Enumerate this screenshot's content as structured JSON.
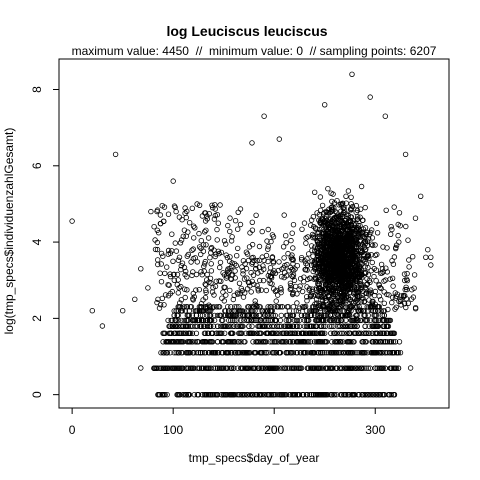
{
  "chart_data": {
    "type": "scatter",
    "title": "log Leuciscus leuciscus",
    "subtitle": "maximum value: 4450  //  minimum value: 0  // sampling points: 6207",
    "xlabel": "tmp_specs$day_of_year",
    "ylabel": "log(tmp_specs$individuenzahlGesamt)",
    "xlim": [
      -13,
      373
    ],
    "ylim": [
      -0.35,
      8.8
    ],
    "xticks": [
      0,
      100,
      200,
      300
    ],
    "yticks": [
      0,
      2,
      4,
      6,
      8
    ],
    "grid": false,
    "marker": "open-circle",
    "point_color": "#000000",
    "max_value": 4450,
    "min_value": 0,
    "sampling_points": 6207,
    "main_cluster": {
      "x_range": [
        230,
        305
      ],
      "y_range": [
        1.9,
        6.5
      ],
      "center": [
        265,
        3.6
      ]
    },
    "outliers": [
      {
        "x": 0,
        "y": 4.55
      },
      {
        "x": 20,
        "y": 2.2
      },
      {
        "x": 30,
        "y": 1.8
      },
      {
        "x": 43,
        "y": 6.3
      },
      {
        "x": 50,
        "y": 2.2
      },
      {
        "x": 62,
        "y": 2.5
      },
      {
        "x": 68,
        "y": 0.7
      },
      {
        "x": 68,
        "y": 3.3
      },
      {
        "x": 75,
        "y": 2.8
      },
      {
        "x": 78,
        "y": 4.8
      },
      {
        "x": 85,
        "y": 2.5
      },
      {
        "x": 100,
        "y": 5.6
      },
      {
        "x": 178,
        "y": 6.6
      },
      {
        "x": 190,
        "y": 7.3
      },
      {
        "x": 205,
        "y": 6.7
      },
      {
        "x": 250,
        "y": 7.6
      },
      {
        "x": 277,
        "y": 8.4
      },
      {
        "x": 295,
        "y": 7.8
      },
      {
        "x": 310,
        "y": 7.3
      },
      {
        "x": 330,
        "y": 6.3
      },
      {
        "x": 345,
        "y": 5.2
      },
      {
        "x": 350,
        "y": 3.6
      },
      {
        "x": 352,
        "y": 3.8
      },
      {
        "x": 355,
        "y": 3.4
      },
      {
        "x": 355,
        "y": 3.6
      },
      {
        "x": 335,
        "y": 0.7
      }
    ],
    "integer_count_levels": [
      {
        "y": 0,
        "x_range": [
          84,
          320
        ]
      },
      {
        "y": 0.693,
        "x_range": [
          80,
          325
        ]
      },
      {
        "y": 1.099,
        "x_range": [
          88,
          325
        ]
      },
      {
        "y": 1.386,
        "x_range": [
          90,
          325
        ]
      },
      {
        "y": 1.609,
        "x_range": [
          90,
          325
        ]
      },
      {
        "y": 1.792,
        "x_range": [
          95,
          320
        ]
      },
      {
        "y": 1.946,
        "x_range": [
          95,
          315
        ]
      },
      {
        "y": 2.079,
        "x_range": [
          100,
          310
        ]
      },
      {
        "y": 2.197,
        "x_range": [
          100,
          310
        ]
      },
      {
        "y": 2.303,
        "x_range": [
          105,
          310
        ]
      }
    ]
  }
}
